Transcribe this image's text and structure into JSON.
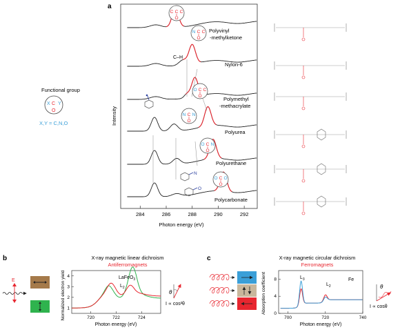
{
  "panel_a": {
    "letter": "a",
    "xlabel": "Photon energy (eV)",
    "ylabel": "Intensity",
    "xticks": [
      "284",
      "286",
      "288",
      "290",
      "292"
    ],
    "ch_label": "C–H",
    "polymers": [
      {
        "line1": "Polyvinyl",
        "line2": "-methylketone"
      },
      {
        "line1": "Nylon-6",
        "line2": ""
      },
      {
        "line1": "Polymethyl",
        "line2": "-methacrylate"
      },
      {
        "line1": "Polyurea",
        "line2": ""
      },
      {
        "line1": "Polyurethane",
        "line2": ""
      },
      {
        "line1": "Polycarbonate",
        "line2": ""
      }
    ],
    "functional_group": {
      "title": "Functional group",
      "legend": "X,Y = C,N,O",
      "x": "X",
      "y": "Y",
      "c": "C",
      "o": "O"
    },
    "group_atoms": [
      {
        "left": "C",
        "center": "C",
        "right": "C",
        "bottom": "O"
      },
      {
        "left": "N",
        "center": "C",
        "right": "C",
        "bottom": "O"
      },
      {
        "left": "O",
        "center": "C",
        "right": "C",
        "bottom": "O"
      },
      {
        "left": "N",
        "center": "C",
        "right": "N",
        "bottom": "O"
      },
      {
        "left": "O",
        "center": "C",
        "right": "N",
        "bottom": "O"
      },
      {
        "left": "O",
        "center": "C",
        "right": "O",
        "bottom": "O"
      }
    ],
    "ring_labels": {
      "n": "N",
      "o": "O"
    }
  },
  "chart_data": [
    {
      "type": "line",
      "title": "",
      "xlabel": "Photon energy (eV)",
      "ylabel": "Intensity",
      "xlim": [
        282.5,
        293
      ],
      "series": [
        {
          "name": "Polyvinyl -methylketone",
          "peak": 286.7,
          "offset": 5
        },
        {
          "name": "Nylon-6",
          "peak": 288.0,
          "offset": 4
        },
        {
          "name": "Polymethyl -methacrylate",
          "peak": 288.2,
          "offset": 3
        },
        {
          "name": "Polyurea",
          "peak": 289.2,
          "offset": 2
        },
        {
          "name": "Polyurethane",
          "peak": 289.6,
          "offset": 1
        },
        {
          "name": "Polycarbonate",
          "peak": 290.4,
          "offset": 0
        }
      ]
    },
    {
      "type": "line",
      "title": "X-ray magnetic linear dichroism",
      "xlabel": "Photon energy (eV)",
      "ylabel": "Normalized electron yield",
      "xlim": [
        718.5,
        725.5
      ],
      "ylim": [
        0.5,
        4.5
      ],
      "yticks": [
        1,
        2,
        3,
        4
      ],
      "xticks": [
        720,
        722,
        724
      ],
      "labels": [
        "LaFeO3",
        "L2"
      ]
    },
    {
      "type": "line",
      "title": "X-ray magnetic circular dichroism",
      "xlabel": "Photon energy (eV)",
      "ylabel": "Absorption coefficient",
      "xlim": [
        695,
        740
      ],
      "ylim": [
        0,
        10
      ],
      "yticks": [
        0,
        4,
        8
      ],
      "xticks": [
        700,
        720,
        740
      ],
      "labels": [
        "L3",
        "L2",
        "Fe"
      ]
    }
  ],
  "panel_b": {
    "letter": "b",
    "title": "X-ray magnetic linear dichroism",
    "subtitle": "Antiferromagnets",
    "ylabel": "Normalized electron yield",
    "xlabel": "Photon energy (eV)",
    "xticks": [
      "720",
      "722",
      "724"
    ],
    "yticks": [
      "1",
      "2",
      "3",
      "4"
    ],
    "sample_main": "LaFeO",
    "sample_sub": "3",
    "edge_main": "L",
    "edge_sub": "2",
    "e_label": "E",
    "theta": "θ",
    "formula": "I ∝ cos²θ",
    "colors": {
      "brown": "#a57a4a",
      "green": "#2fb34e",
      "red": "#e8262f"
    }
  },
  "panel_c": {
    "letter": "c",
    "title": "X-ray magnetic circular dichroism",
    "subtitle": "Ferromagnets",
    "ylabel": "Absorption coefficient",
    "xlabel": "Photon energy (eV)",
    "xticks": [
      "700",
      "720",
      "740"
    ],
    "yticks": [
      "0",
      "4",
      "8"
    ],
    "l3_main": "L",
    "l3_sub": "3",
    "l2_main": "L",
    "l2_sub": "2",
    "element": "Fe",
    "theta": "θ",
    "formula": "I ∝ cosθ",
    "colors": {
      "blue": "#3a9fd8",
      "tan": "#c9b79c",
      "red": "#e8262f"
    }
  }
}
